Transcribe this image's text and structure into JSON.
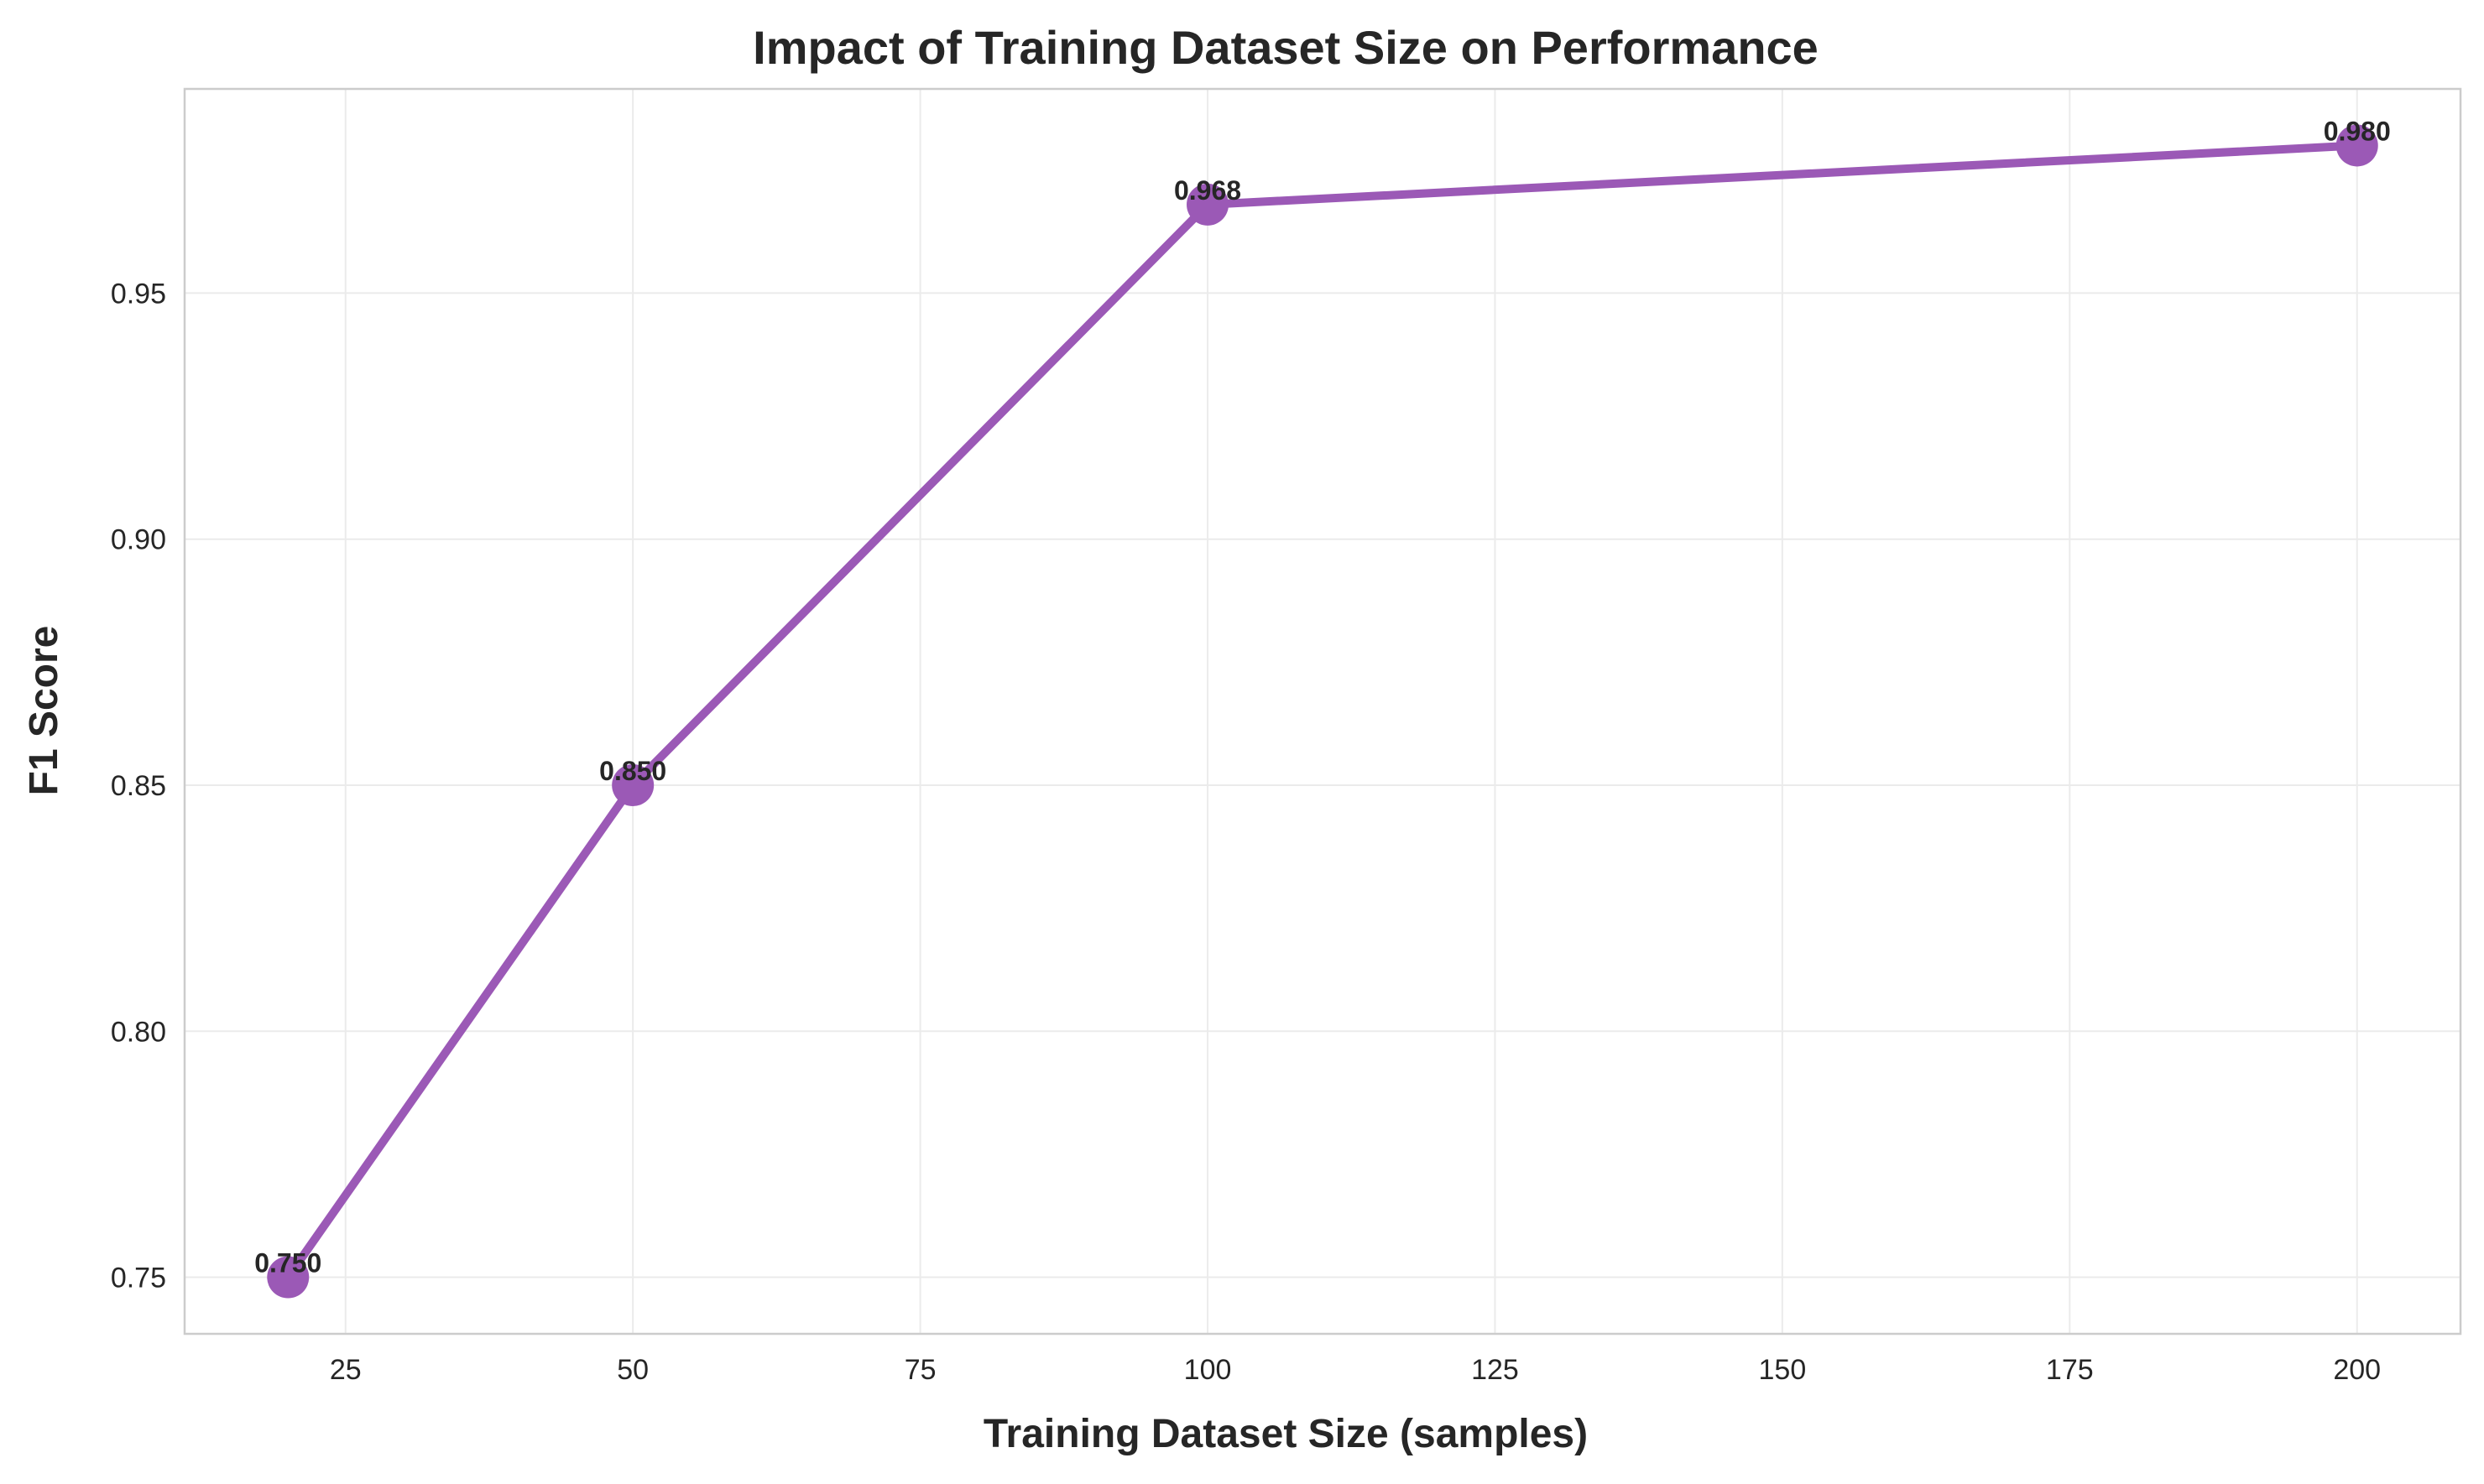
{
  "colors": {
    "series": "#9b59b6",
    "grid": "#ebebeb",
    "frame": "#cccccc",
    "text": "#262626"
  },
  "chart_data": {
    "type": "line",
    "title": "Impact of Training Dataset Size on Performance",
    "xlabel": "Training Dataset Size (samples)",
    "ylabel": "F1 Score",
    "x": [
      20,
      50,
      100,
      200
    ],
    "series": [
      {
        "values": [
          0.75,
          0.85,
          0.968,
          0.98
        ],
        "data_labels": [
          "0.750",
          "0.850",
          "0.968",
          "0.980"
        ],
        "color": "#9b59b6"
      }
    ],
    "xlim": [
      11,
      209
    ],
    "ylim": [
      0.7385,
      0.9915
    ],
    "xticks": [
      25,
      50,
      75,
      100,
      125,
      150,
      175,
      200
    ],
    "xtick_labels": [
      "25",
      "50",
      "75",
      "100",
      "125",
      "150",
      "175",
      "200"
    ],
    "yticks": [
      0.75,
      0.8,
      0.85,
      0.9,
      0.95
    ],
    "ytick_labels": [
      "0.75",
      "0.80",
      "0.85",
      "0.90",
      "0.95"
    ],
    "grid": true,
    "legend": false
  }
}
